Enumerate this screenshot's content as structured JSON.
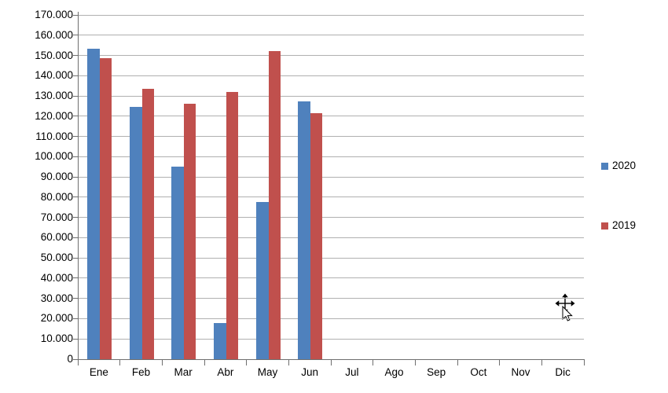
{
  "chart_data": {
    "type": "bar",
    "title": "",
    "categories": [
      "Ene",
      "Feb",
      "Mar",
      "Abr",
      "May",
      "Jun",
      "Jul",
      "Ago",
      "Sep",
      "Oct",
      "Nov",
      "Dic"
    ],
    "series": [
      {
        "name": "2020",
        "color": "#4F81BD",
        "values": [
          153500,
          124500,
          95000,
          18000,
          77500,
          127500,
          null,
          null,
          null,
          null,
          null,
          null
        ]
      },
      {
        "name": "2019",
        "color": "#C0504D",
        "values": [
          148500,
          133500,
          126000,
          132000,
          152000,
          121500,
          null,
          null,
          null,
          null,
          null,
          null
        ]
      }
    ],
    "xlabel": "",
    "ylabel": "",
    "ylim": [
      0,
      170000
    ],
    "y_tick_step": 10000,
    "y_tick_labels": [
      "0",
      "10.000",
      "20.000",
      "30.000",
      "40.000",
      "50.000",
      "60.000",
      "70.000",
      "80.000",
      "90.000",
      "100.000",
      "110.000",
      "120.000",
      "130.000",
      "140.000",
      "150.000",
      "160.000",
      "170.000"
    ],
    "grid": true,
    "legend_position": "right"
  },
  "cursor": {
    "type": "move-arrow"
  },
  "colors": {
    "background": "#FFFFFF",
    "gridline": "#B0B0B0",
    "axis": "#6F6F6F",
    "text": "#000000"
  }
}
